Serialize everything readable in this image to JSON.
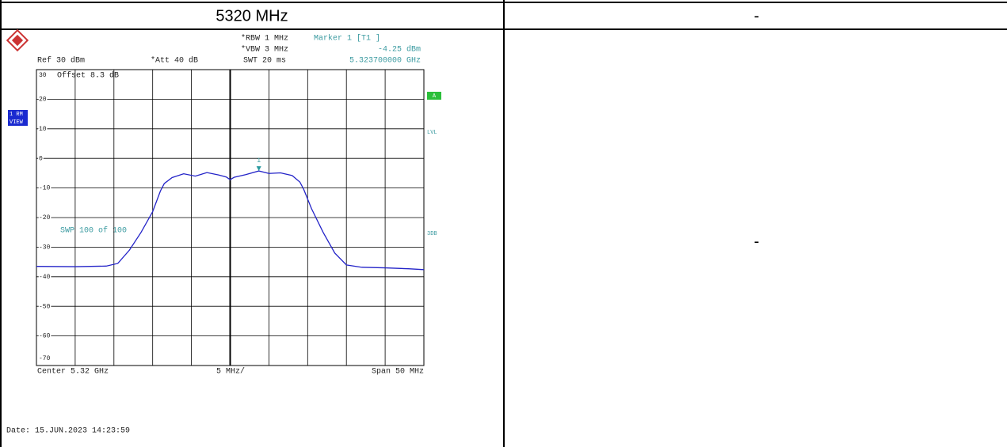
{
  "table": {
    "header": [
      "5320 MHz",
      "-"
    ],
    "body_right": "-"
  },
  "chart_data": {
    "type": "line",
    "ref_label": "Ref  30 dBm",
    "att_label": "*Att  40 dB",
    "rbw_label": "*RBW 1 MHz",
    "vbw_label": "*VBW 3 MHz",
    "swt_label": "SWT 20 ms",
    "marker_title": "Marker 1 [T1 ]",
    "offset_label": "Offset  8.3 dB",
    "sweep_label": "SWP   100 of  100",
    "side_labels": [
      "A",
      "LVL",
      "3DB"
    ],
    "trace_labels": [
      "1 RM",
      "VIEW"
    ],
    "center_label": "Center 5.32 GHz",
    "div_label": "5 MHz/",
    "span_label": "Span 50 MHz",
    "date_label": "Date: 15.JUN.2023  14:23:59",
    "marker": {
      "label": "1",
      "x": 5.3237,
      "y": -4.25,
      "x_label": "5.323700000 GHz",
      "value_label": "-4.25 dBm"
    },
    "color": "#2323c8",
    "x": [
      5.295,
      5.3,
      5.304,
      5.3055,
      5.307,
      5.3085,
      5.31,
      5.311,
      5.3115,
      5.3125,
      5.314,
      5.3155,
      5.317,
      5.3185,
      5.3195,
      5.32,
      5.3205,
      5.322,
      5.3237,
      5.325,
      5.3265,
      5.328,
      5.329,
      5.3295,
      5.3305,
      5.332,
      5.3335,
      5.335,
      5.337,
      5.34,
      5.343,
      5.345
    ],
    "values": [
      -36.5,
      -36.6,
      -36.4,
      -35.5,
      -31,
      -25,
      -18,
      -11,
      -8.5,
      -6.5,
      -5.2,
      -6.0,
      -4.8,
      -5.6,
      -6.3,
      -7.2,
      -6.4,
      -5.5,
      -4.25,
      -5.1,
      -4.9,
      -5.8,
      -8,
      -10.5,
      -17,
      -25,
      -32,
      -36,
      -36.8,
      -37,
      -37.3,
      -37.6
    ],
    "xlim": [
      5.295,
      5.345
    ],
    "xticks": [
      5.295,
      5.3,
      5.305,
      5.31,
      5.315,
      5.32,
      5.325,
      5.33,
      5.335,
      5.34,
      5.345
    ],
    "ylim": [
      -70,
      30
    ],
    "yticks": [
      30,
      20,
      10,
      0,
      -10,
      -20,
      -30,
      -40,
      -50,
      -60,
      -70
    ],
    "grid": true
  }
}
